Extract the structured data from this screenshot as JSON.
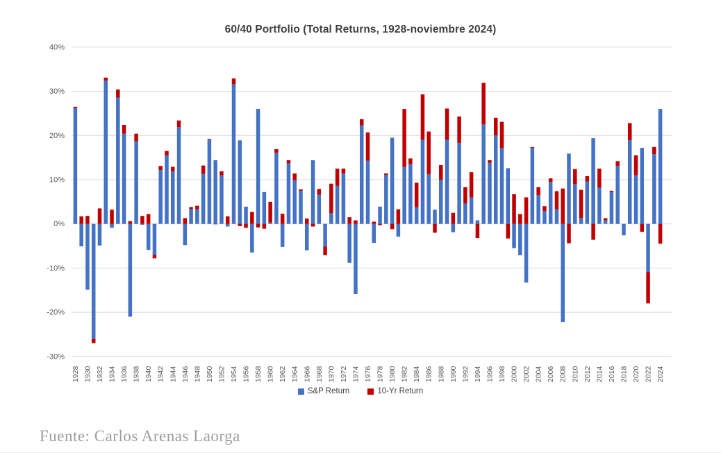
{
  "page": {
    "source": "Fuente: Carlos Arenas Laorga"
  },
  "chart_data": {
    "type": "bar",
    "stacked": true,
    "title": "60/40 Portfolio (Total Returns, 1928-noviembre 2024)",
    "xlabel": "",
    "ylabel": "",
    "ylim": [
      -30,
      40
    ],
    "ytick_step": 10,
    "ytick_labels": [
      "40%",
      "30%",
      "20%",
      "10%",
      "0%",
      "-10%",
      "-20%",
      "-30%"
    ],
    "xtick_every": 2,
    "grid": "horizontal",
    "legend_position": "bottom",
    "units": "percent",
    "x": [
      1928,
      1929,
      1930,
      1931,
      1932,
      1933,
      1934,
      1935,
      1936,
      1937,
      1938,
      1939,
      1940,
      1941,
      1942,
      1943,
      1944,
      1945,
      1946,
      1947,
      1948,
      1949,
      1950,
      1951,
      1952,
      1953,
      1954,
      1955,
      1956,
      1957,
      1958,
      1959,
      1960,
      1961,
      1962,
      1963,
      1964,
      1965,
      1966,
      1967,
      1968,
      1969,
      1970,
      1971,
      1972,
      1973,
      1974,
      1975,
      1976,
      1977,
      1978,
      1979,
      1980,
      1981,
      1982,
      1983,
      1984,
      1985,
      1986,
      1987,
      1988,
      1989,
      1990,
      1991,
      1992,
      1993,
      1994,
      1995,
      1996,
      1997,
      1998,
      1999,
      2000,
      2001,
      2002,
      2003,
      2004,
      2005,
      2006,
      2007,
      2008,
      2009,
      2010,
      2011,
      2012,
      2013,
      2014,
      2015,
      2016,
      2017,
      2018,
      2019,
      2020,
      2021,
      2022,
      2023,
      2024
    ],
    "series": [
      {
        "name": "S&P Return",
        "color": "#4472C4",
        "values": [
          26.2,
          -5.1,
          -14.9,
          -26.0,
          -4.9,
          32.4,
          -0.9,
          28.6,
          20.4,
          -21.0,
          18.7,
          -0.2,
          -5.9,
          -7.0,
          12.2,
          15.5,
          11.9,
          21.9,
          -4.8,
          3.4,
          3.3,
          11.3,
          19.0,
          14.4,
          11.0,
          -0.6,
          31.6,
          18.9,
          3.9,
          -6.5,
          26.0,
          7.2,
          0.3,
          16.1,
          -5.2,
          13.7,
          9.9,
          7.5,
          -6.0,
          14.4,
          6.6,
          -5.1,
          2.4,
          8.6,
          11.4,
          -8.8,
          -15.9,
          22.3,
          14.3,
          -4.3,
          3.9,
          11.1,
          19.5,
          -2.9,
          12.9,
          13.5,
          3.8,
          19.0,
          11.2,
          3.2,
          10.0,
          19.0,
          -1.9,
          18.3,
          4.6,
          6.0,
          0.8,
          22.5,
          13.8,
          20.0,
          17.1,
          12.6,
          -5.5,
          -7.1,
          -13.3,
          17.2,
          6.5,
          2.9,
          9.5,
          3.3,
          -22.2,
          15.9,
          9.0,
          1.3,
          9.6,
          19.4,
          8.2,
          0.8,
          7.2,
          13.1,
          -2.6,
          18.9,
          11.0,
          17.2,
          -10.9,
          15.8,
          26.0
        ]
      },
      {
        "name": "10-Yr Return",
        "color": "#C00000",
        "values": [
          0.3,
          1.7,
          1.8,
          -1.0,
          3.5,
          0.7,
          3.2,
          1.8,
          2.0,
          0.6,
          1.7,
          1.8,
          2.2,
          -0.8,
          0.9,
          1.0,
          1.0,
          1.5,
          1.3,
          0.4,
          0.8,
          1.9,
          0.2,
          -0.1,
          0.9,
          1.7,
          1.3,
          -0.5,
          -0.9,
          2.7,
          -0.8,
          -1.1,
          4.7,
          0.8,
          2.3,
          0.7,
          1.5,
          0.3,
          1.2,
          -0.6,
          1.3,
          -2.0,
          6.7,
          3.9,
          1.1,
          1.5,
          0.8,
          1.4,
          6.4,
          0.5,
          -0.3,
          0.3,
          -1.2,
          3.3,
          13.1,
          1.3,
          5.5,
          10.3,
          9.7,
          -2.0,
          3.3,
          7.1,
          2.5,
          6.0,
          3.7,
          5.7,
          -3.2,
          9.4,
          0.6,
          4.0,
          6.0,
          -3.3,
          6.7,
          2.2,
          6.0,
          0.2,
          1.8,
          1.1,
          0.8,
          4.1,
          8.0,
          -4.4,
          3.4,
          6.4,
          1.2,
          -3.6,
          4.3,
          0.5,
          0.3,
          1.1,
          0.0,
          3.9,
          4.5,
          -1.8,
          -7.1,
          1.6,
          -4.5
        ]
      }
    ],
    "styles": {
      "gridline_color": "#D9D9D9",
      "axis_label_color": "#595959",
      "title_color": "#404040",
      "background": "#FFFFFF"
    }
  }
}
